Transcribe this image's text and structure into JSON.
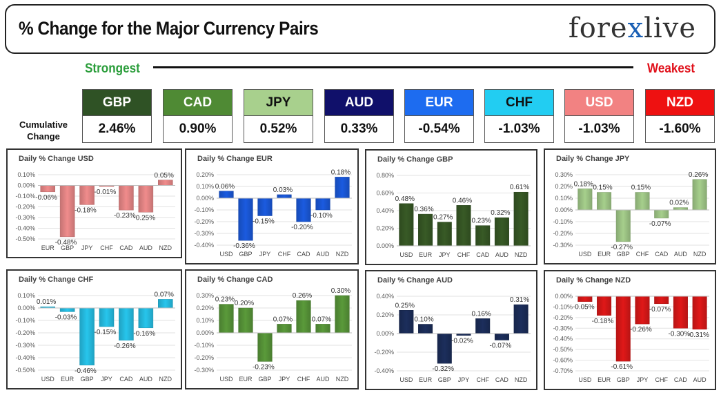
{
  "header": {
    "title": "% Change for the Major Currency Pairs",
    "logo_left": "fore",
    "logo_x": "x",
    "logo_right": "live"
  },
  "scale": {
    "strongest": "Strongest",
    "weakest": "Weakest"
  },
  "cumulative_label": "Cumulative Change",
  "currencies": [
    {
      "name": "GBP",
      "value": "2.46%",
      "bg": "#2f5225",
      "fg": "#ffffff"
    },
    {
      "name": "CAD",
      "value": "0.90%",
      "bg": "#4f8a34",
      "fg": "#ffffff"
    },
    {
      "name": "JPY",
      "value": "0.52%",
      "bg": "#a8d08d",
      "fg": "#111111"
    },
    {
      "name": "AUD",
      "value": "0.33%",
      "bg": "#10106a",
      "fg": "#ffffff"
    },
    {
      "name": "EUR",
      "value": "-0.54%",
      "bg": "#1d6cf0",
      "fg": "#ffffff"
    },
    {
      "name": "CHF",
      "value": "-1.03%",
      "bg": "#22cdf2",
      "fg": "#111111"
    },
    {
      "name": "USD",
      "value": "-1.03%",
      "bg": "#f28282",
      "fg": "#ffffff"
    },
    {
      "name": "NZD",
      "value": "-1.60%",
      "bg": "#ee1111",
      "fg": "#ffffff"
    }
  ],
  "chart_data": [
    {
      "type": "bar",
      "title": "Daily % Change USD",
      "color": "#f08c8c",
      "categories": [
        "EUR",
        "GBP",
        "JPY",
        "CHF",
        "CAD",
        "AUD",
        "NZD"
      ],
      "values": [
        -0.06,
        -0.48,
        -0.18,
        -0.01,
        -0.23,
        -0.25,
        0.05
      ],
      "labels": [
        "-0.06%",
        "-0.48%",
        "-0.18%",
        "-0.01%",
        "-0.23%",
        "-0.25%",
        "0.05%"
      ],
      "ylim": [
        -0.5,
        0.1
      ],
      "yticks": [
        0.1,
        0,
        -0.1,
        -0.2,
        -0.3,
        -0.4,
        -0.5
      ],
      "ydigits": 2
    },
    {
      "type": "bar",
      "title": "Daily % Change EUR",
      "color": "#1b5be0",
      "categories": [
        "USD",
        "GBP",
        "JPY",
        "CHF",
        "CAD",
        "AUD",
        "NZD"
      ],
      "values": [
        0.06,
        -0.36,
        -0.15,
        0.03,
        -0.2,
        -0.1,
        0.18
      ],
      "labels": [
        "0.06%",
        "-0.36%",
        "-0.15%",
        "0.03%",
        "-0.20%",
        "-0.10%",
        "0.18%"
      ],
      "ylim": [
        -0.4,
        0.2
      ],
      "yticks": [
        0.2,
        0.1,
        0,
        -0.1,
        -0.2,
        -0.3,
        -0.4
      ],
      "ydigits": 2
    },
    {
      "type": "bar",
      "title": "Daily % Change GBP",
      "color": "#385a26",
      "categories": [
        "USD",
        "EUR",
        "JPY",
        "CHF",
        "CAD",
        "AUD",
        "NZD"
      ],
      "values": [
        0.48,
        0.36,
        0.27,
        0.46,
        0.23,
        0.32,
        0.61
      ],
      "labels": [
        "0.48%",
        "0.36%",
        "0.27%",
        "0.46%",
        "0.23%",
        "0.32%",
        "0.61%"
      ],
      "ylim": [
        0,
        0.8
      ],
      "yticks": [
        0.8,
        0.6,
        0.4,
        0.2,
        0
      ],
      "ydigits": 2
    },
    {
      "type": "bar",
      "title": "Daily % Change JPY",
      "color": "#a6cf8c",
      "categories": [
        "USD",
        "EUR",
        "GBP",
        "CHF",
        "CAD",
        "AUD",
        "NZD"
      ],
      "values": [
        0.18,
        0.15,
        -0.27,
        0.15,
        -0.07,
        0.02,
        0.26
      ],
      "labels": [
        "0.18%",
        "0.15%",
        "-0.27%",
        "0.15%",
        "-0.07%",
        "0.02%",
        "0.26%"
      ],
      "ylim": [
        -0.3,
        0.3
      ],
      "yticks": [
        0.3,
        0.2,
        0.1,
        0,
        -0.1,
        -0.2,
        -0.3
      ],
      "ydigits": 2
    },
    {
      "type": "bar",
      "title": "Daily % Change CHF",
      "color": "#27c5ec",
      "categories": [
        "USD",
        "EUR",
        "GBP",
        "JPY",
        "CAD",
        "AUD",
        "NZD"
      ],
      "values": [
        0.01,
        -0.03,
        -0.46,
        -0.15,
        -0.26,
        -0.16,
        0.07
      ],
      "labels": [
        "0.01%",
        "-0.03%",
        "-0.46%",
        "-0.15%",
        "-0.26%",
        "-0.16%",
        "0.07%"
      ],
      "ylim": [
        -0.5,
        0.1
      ],
      "yticks": [
        0.1,
        0,
        -0.1,
        -0.2,
        -0.3,
        -0.4,
        -0.5
      ],
      "ydigits": 2
    },
    {
      "type": "bar",
      "title": "Daily % Change CAD",
      "color": "#5a9a3a",
      "categories": [
        "USD",
        "EUR",
        "GBP",
        "JPY",
        "CHF",
        "AUD",
        "NZD"
      ],
      "values": [
        0.23,
        0.2,
        -0.23,
        0.07,
        0.26,
        0.07,
        0.3
      ],
      "labels": [
        "0.23%",
        "0.20%",
        "-0.23%",
        "0.07%",
        "0.26%",
        "0.07%",
        "0.30%"
      ],
      "ylim": [
        -0.3,
        0.3
      ],
      "yticks": [
        0.3,
        0.2,
        0.1,
        0,
        -0.1,
        -0.2,
        -0.3
      ],
      "ydigits": 2
    },
    {
      "type": "bar",
      "title": "Daily % Change AUD",
      "color": "#1c2e5c",
      "categories": [
        "USD",
        "EUR",
        "GBP",
        "JPY",
        "CHF",
        "CAD",
        "NZD"
      ],
      "values": [
        0.25,
        0.1,
        -0.32,
        -0.02,
        0.16,
        -0.07,
        0.31
      ],
      "labels": [
        "0.25%",
        "0.10%",
        "-0.32%",
        "-0.02%",
        "0.16%",
        "-0.07%",
        "0.31%"
      ],
      "ylim": [
        -0.4,
        0.4
      ],
      "yticks": [
        0.4,
        0.2,
        0,
        -0.2,
        -0.4
      ],
      "ydigits": 2
    },
    {
      "type": "bar",
      "title": "Daily % Change NZD",
      "color": "#e01818",
      "categories": [
        "USD",
        "EUR",
        "GBP",
        "JPY",
        "CHF",
        "CAD",
        "AUD"
      ],
      "values": [
        -0.05,
        -0.18,
        -0.61,
        -0.26,
        -0.07,
        -0.3,
        -0.31
      ],
      "labels": [
        "-0.05%",
        "-0.18%",
        "-0.61%",
        "-0.26%",
        "-0.07%",
        "-0.30%",
        "-0.31%"
      ],
      "ylim": [
        -0.7,
        0
      ],
      "yticks": [
        0,
        -0.1,
        -0.2,
        -0.3,
        -0.4,
        -0.5,
        -0.6,
        -0.7
      ],
      "ydigits": 2
    }
  ]
}
